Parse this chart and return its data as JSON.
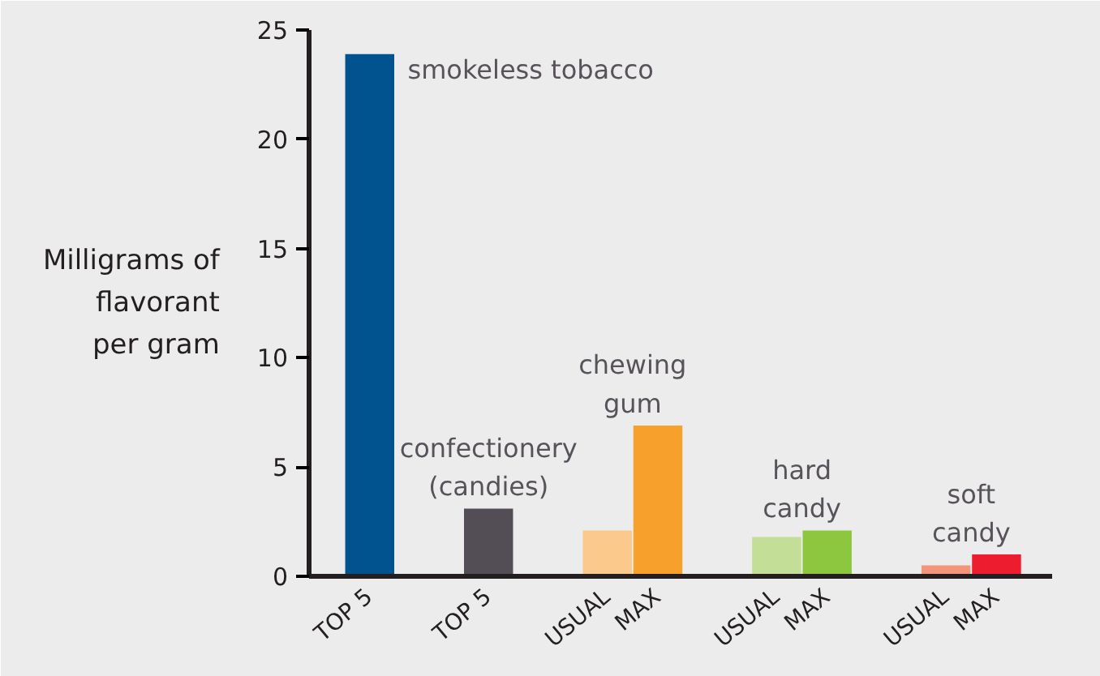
{
  "chart_data": {
    "type": "bar",
    "ylabel": "Milligrams of\nflavorant\nper gram",
    "categories": [
      "TOP 5",
      "TOP 5",
      "USUAL",
      "MAX",
      "USUAL",
      "MAX",
      "USUAL",
      "MAX"
    ],
    "values": [
      23.9,
      3.1,
      2.1,
      6.9,
      1.8,
      2.1,
      0.5,
      1.0
    ],
    "colors": [
      "#00538f",
      "#534d55",
      "#fcc98c",
      "#f7a02b",
      "#c3de97",
      "#8dc63f",
      "#f3957b",
      "#ed1c2e"
    ],
    "ylim": [
      0,
      25
    ],
    "yticks": [
      0,
      5,
      10,
      15,
      20,
      25
    ],
    "grid": false,
    "annotations": [
      "smokeless tobacco",
      "confectionery\n(candies)",
      "chewing\ngum",
      "hard\ncandy",
      "soft\ncandy"
    ]
  }
}
